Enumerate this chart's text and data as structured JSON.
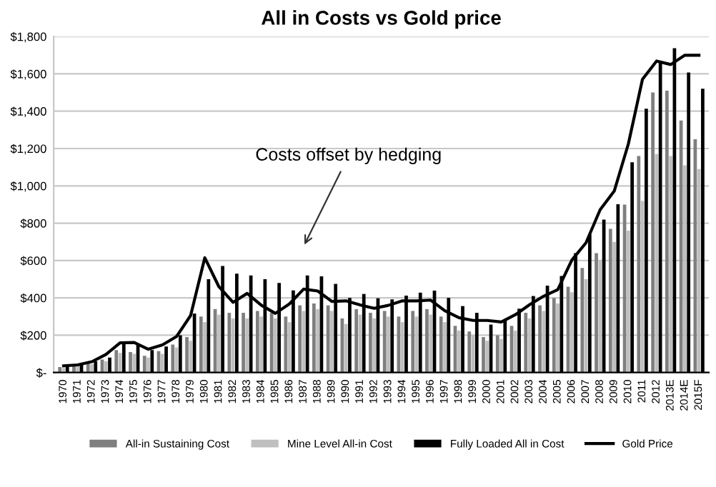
{
  "chart_data": {
    "type": "bar",
    "title": "All in Costs vs Gold price",
    "categories": [
      "1970",
      "1971",
      "1972",
      "1973",
      "1974",
      "1975",
      "1976",
      "1977",
      "1978",
      "1979",
      "1980",
      "1981",
      "1982",
      "1983",
      "1984",
      "1985",
      "1986",
      "1987",
      "1988",
      "1989",
      "1990",
      "1991",
      "1992",
      "1993",
      "1994",
      "1995",
      "1996",
      "1997",
      "1998",
      "1999",
      "2000",
      "2001",
      "2002",
      "2003",
      "2004",
      "2005",
      "2006",
      "2007",
      "2008",
      "2009",
      "2010",
      "2011",
      "2012",
      "2013E",
      "2014E",
      "2015F"
    ],
    "series": [
      {
        "name": "All-in Sustaining Cost",
        "color": "#7f7f7f",
        "values": [
          30,
          40,
          50,
          70,
          120,
          110,
          90,
          115,
          150,
          190,
          300,
          340,
          320,
          320,
          330,
          320,
          300,
          360,
          370,
          360,
          290,
          340,
          320,
          330,
          300,
          330,
          340,
          300,
          250,
          220,
          190,
          200,
          250,
          320,
          360,
          400,
          460,
          560,
          640,
          770,
          900,
          1160,
          1500,
          1510,
          1350,
          1250
        ]
      },
      {
        "name": "Mine Level All-in Cost",
        "color": "#bfbfbf",
        "values": [
          25,
          35,
          45,
          60,
          105,
          100,
          80,
          100,
          135,
          170,
          270,
          310,
          290,
          290,
          300,
          290,
          270,
          330,
          340,
          330,
          260,
          310,
          290,
          300,
          270,
          300,
          310,
          270,
          225,
          200,
          170,
          180,
          225,
          290,
          330,
          370,
          430,
          500,
          600,
          700,
          760,
          920,
          1170,
          1160,
          1110,
          1090
        ]
      },
      {
        "name": "Fully Loaded All in Cost",
        "color": "#000000",
        "values": [
          40,
          45,
          60,
          80,
          160,
          150,
          120,
          140,
          200,
          316,
          500,
          571,
          530,
          520,
          500,
          480,
          440,
          520,
          515,
          475,
          400,
          421,
          398,
          392,
          412,
          428,
          439,
          400,
          356,
          320,
          257,
          282,
          342,
          410,
          466,
          517,
          640,
          741,
          819,
          902,
          1126,
          1413,
          1670,
          1737,
          1607,
          1520
        ]
      },
      {
        "name": "Gold Price",
        "type": "line",
        "color": "#000000",
        "values": [
          36,
          41,
          58,
          97,
          159,
          161,
          125,
          148,
          193,
          306,
          615,
          460,
          376,
          424,
          361,
          317,
          368,
          447,
          437,
          381,
          384,
          362,
          344,
          360,
          384,
          384,
          388,
          331,
          294,
          279,
          279,
          271,
          310,
          363,
          409,
          444,
          603,
          695,
          872,
          972,
          1225,
          1571,
          1669,
          1650,
          1700,
          1700
        ]
      }
    ],
    "ylim": [
      0,
      1800
    ],
    "yticks": [
      {
        "value": 0,
        "label": "$-"
      },
      {
        "value": 200,
        "label": "$200"
      },
      {
        "value": 400,
        "label": "$400"
      },
      {
        "value": 600,
        "label": "$600"
      },
      {
        "value": 800,
        "label": "$800"
      },
      {
        "value": 1000,
        "label": "$1,000"
      },
      {
        "value": 1200,
        "label": "$1,200"
      },
      {
        "value": 1400,
        "label": "$1,400"
      },
      {
        "value": 1600,
        "label": "$1,600"
      },
      {
        "value": 1800,
        "label": "$1,800"
      }
    ],
    "grid": "y",
    "legend": "bottom",
    "annotations": [
      "Costs offset by hedging"
    ]
  }
}
